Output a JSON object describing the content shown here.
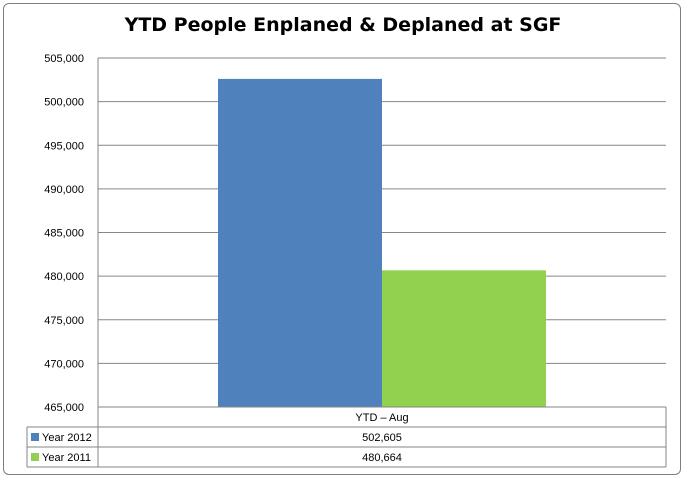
{
  "chart_data": {
    "type": "bar",
    "title": "YTD People Enplaned & Deplaned at SGF",
    "categories": [
      "YTD – Aug"
    ],
    "series": [
      {
        "name": "Year 2012",
        "values": [
          502605
        ],
        "value_labels": [
          "502,605"
        ],
        "color": "#4f81bd"
      },
      {
        "name": "Year 2011",
        "values": [
          480664
        ],
        "value_labels": [
          "480,664"
        ],
        "color": "#92d050"
      }
    ],
    "ylim": [
      465000,
      505000
    ],
    "yticks": [
      465000,
      470000,
      475000,
      480000,
      485000,
      490000,
      495000,
      500000,
      505000
    ],
    "ytick_labels": [
      "465,000",
      "470,000",
      "475,000",
      "480,000",
      "485,000",
      "490,000",
      "495,000",
      "500,000",
      "505,000"
    ],
    "grid": true,
    "legend": "data-table"
  }
}
